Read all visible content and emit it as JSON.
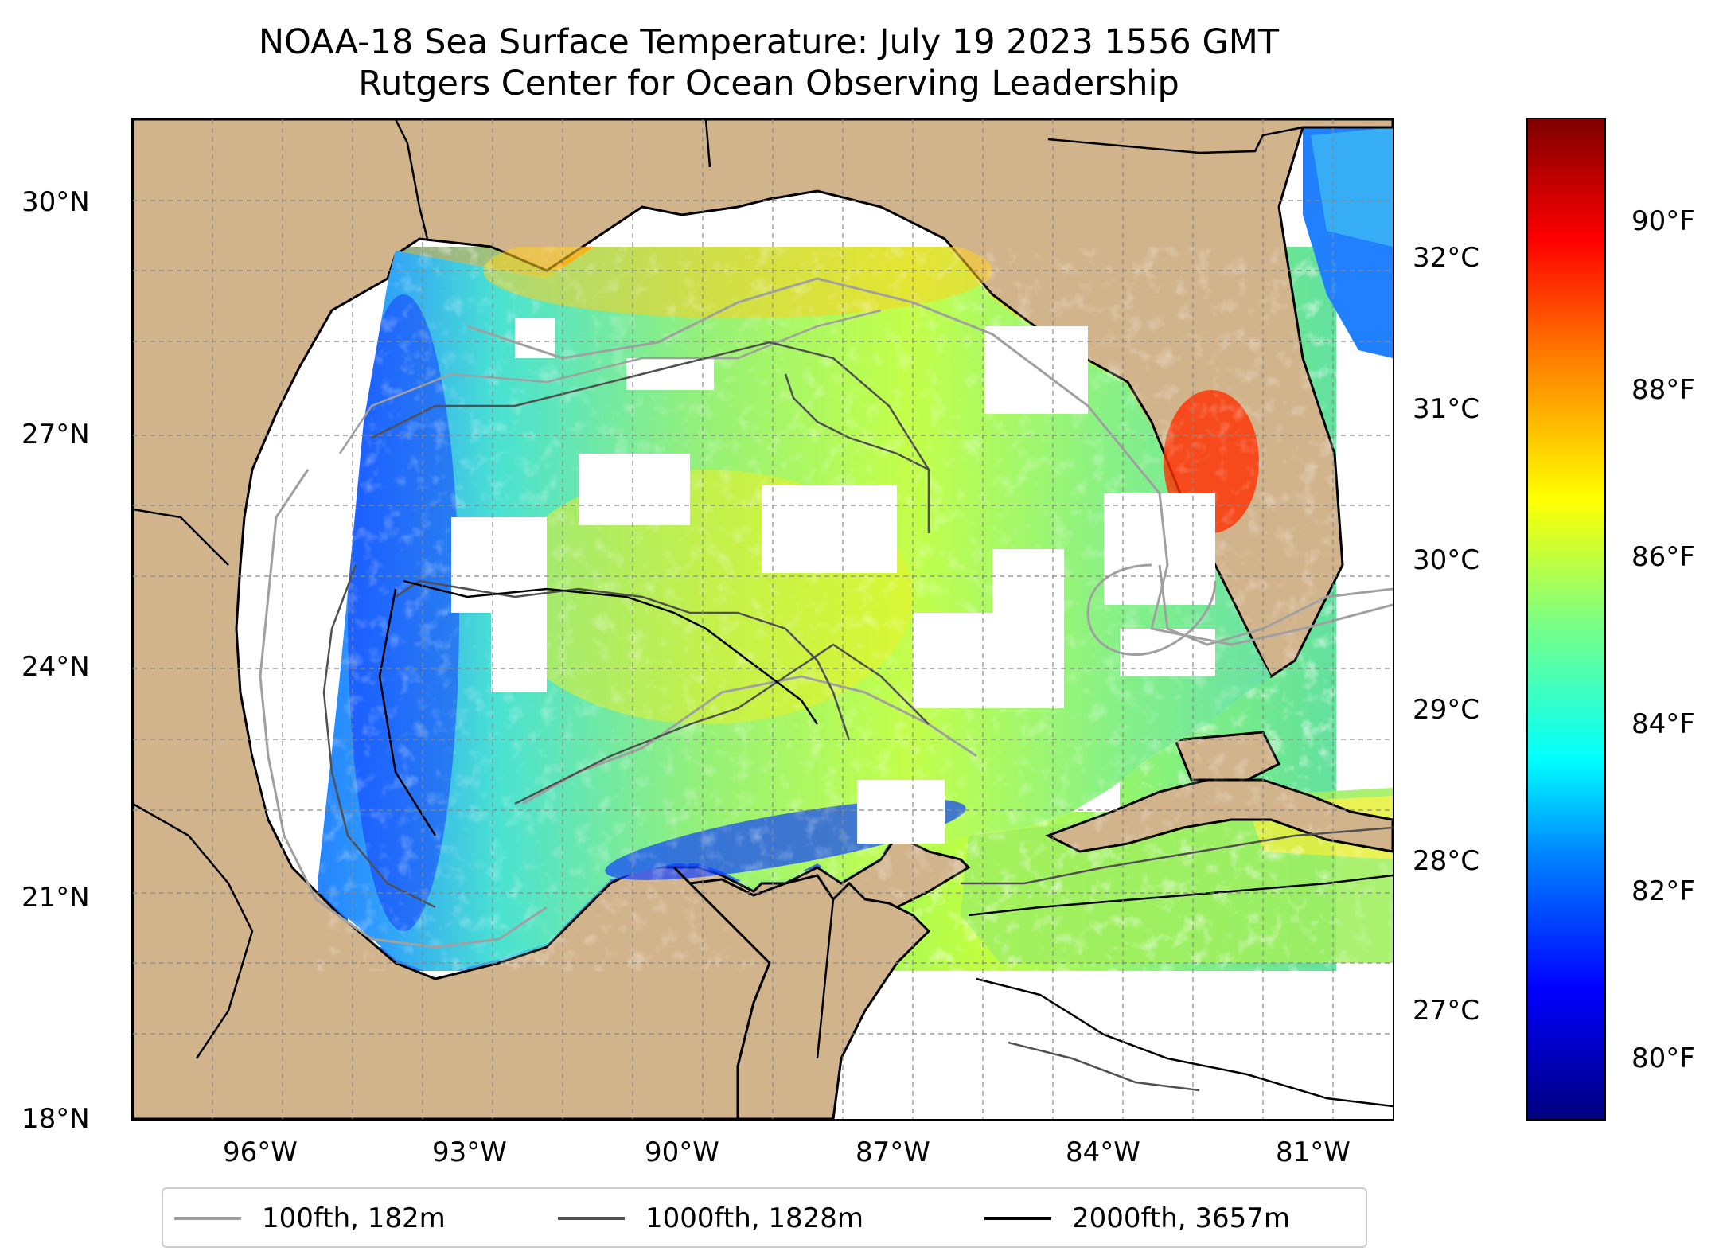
{
  "title": {
    "line1": "NOAA-18 Sea Surface Temperature: July 19 2023 1556 GMT",
    "line2": "Rutgers Center for Ocean Observing Leadership"
  },
  "map": {
    "lon_range": [
      -98.0,
      -80.0
    ],
    "lat_range": [
      18.0,
      31.0
    ],
    "grid": true,
    "land_color": "#d2b48c",
    "lake_color": "#a0b4d8",
    "lat_ticks": [
      "30°N",
      "27°N",
      "24°N",
      "21°N",
      "18°N"
    ],
    "lon_ticks": [
      "96°W",
      "93°W",
      "90°W",
      "87°W",
      "84°W",
      "81°W"
    ]
  },
  "colorbar": {
    "colormap": "jet",
    "celsius_ticks": [
      "32°C",
      "31°C",
      "30°C",
      "29°C",
      "28°C",
      "27°C"
    ],
    "fahrenheit_ticks": [
      "90°F",
      "88°F",
      "86°F",
      "84°F",
      "82°F",
      "80°F"
    ]
  },
  "legend": {
    "placement": "bottom-center",
    "items": [
      {
        "label": "100fth, 182m",
        "color": "#a0a0a0"
      },
      {
        "label": "1000fth, 1828m",
        "color": "#505050"
      },
      {
        "label": "2000fth, 3657m",
        "color": "#000000"
      }
    ]
  }
}
